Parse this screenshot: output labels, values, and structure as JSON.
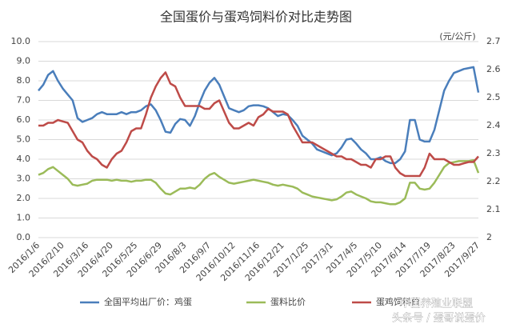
{
  "chart_data": {
    "type": "line",
    "title": "全国蛋价与蛋鸡饲料价对比走势图",
    "y2_unit": "(元/公斤)",
    "watermark": [
      "中国养殖业联盟",
      "头条号 / 蛋哥说蛋价"
    ],
    "categories": [
      "2016/1/6",
      null,
      null,
      null,
      null,
      "2016/2/10",
      null,
      null,
      null,
      null,
      "2016/3/16",
      null,
      null,
      null,
      null,
      "2016/4/20",
      null,
      null,
      null,
      null,
      "2016/5/25",
      null,
      null,
      null,
      null,
      "2016/6/29",
      null,
      null,
      null,
      null,
      "2016/8/3",
      null,
      null,
      null,
      null,
      "2016/9/7",
      null,
      null,
      null,
      null,
      "2016/10/12",
      null,
      null,
      null,
      null,
      "2016/11/16",
      null,
      null,
      null,
      null,
      "2016/12/21",
      null,
      null,
      null,
      null,
      "2017/1/25",
      null,
      null,
      null,
      null,
      "2017/3/1",
      null,
      null,
      null,
      null,
      "2017/4/5",
      null,
      null,
      null,
      null,
      "2017/5/10",
      null,
      null,
      null,
      null,
      "2017/6/14",
      null,
      null,
      null,
      null,
      "2017/7/19",
      null,
      null,
      null,
      null,
      "2017/8/23",
      null,
      null,
      null,
      null,
      "2017/9/27"
    ],
    "series": [
      {
        "name": "全国平均出厂价：鸡蛋",
        "color": "#4a7ebb",
        "values": [
          7.5,
          7.8,
          8.3,
          8.5,
          8.0,
          7.6,
          7.3,
          7.0,
          6.1,
          5.9,
          6.0,
          6.1,
          6.3,
          6.4,
          6.3,
          6.3,
          6.3,
          6.4,
          6.3,
          6.4,
          6.4,
          6.5,
          6.7,
          6.8,
          6.5,
          6.0,
          5.4,
          5.35,
          5.8,
          6.05,
          6.0,
          5.7,
          6.2,
          6.9,
          7.5,
          7.9,
          8.15,
          7.8,
          7.2,
          6.6,
          6.5,
          6.4,
          6.5,
          6.7,
          6.75,
          6.75,
          6.7,
          6.6,
          6.4,
          6.2,
          6.3,
          6.25,
          6.0,
          5.7,
          5.2,
          5.0,
          4.8,
          4.5,
          4.4,
          4.3,
          4.2,
          4.3,
          4.6,
          5.0,
          5.05,
          4.8,
          4.5,
          4.3,
          4.0,
          4.0,
          4.1,
          3.9,
          3.8,
          3.8,
          4.0,
          4.4,
          6.0,
          6.0,
          5.0,
          4.9,
          4.9,
          5.5,
          6.5,
          7.5,
          8.0,
          8.4,
          8.5,
          8.6,
          8.65,
          8.7,
          7.4
        ]
      },
      {
        "name": "蛋料比价",
        "color": "#9bbb59",
        "values": [
          3.2,
          3.3,
          3.5,
          3.6,
          3.4,
          3.2,
          3.0,
          2.7,
          2.65,
          2.7,
          2.75,
          2.9,
          2.95,
          2.95,
          2.95,
          2.9,
          2.95,
          2.9,
          2.9,
          2.85,
          2.9,
          2.9,
          2.95,
          2.95,
          2.8,
          2.5,
          2.25,
          2.2,
          2.35,
          2.5,
          2.5,
          2.55,
          2.5,
          2.7,
          3.0,
          3.2,
          3.3,
          3.1,
          2.95,
          2.8,
          2.75,
          2.8,
          2.85,
          2.9,
          2.95,
          2.9,
          2.85,
          2.8,
          2.7,
          2.65,
          2.7,
          2.65,
          2.6,
          2.5,
          2.3,
          2.2,
          2.1,
          2.05,
          2.0,
          1.95,
          1.9,
          1.95,
          2.1,
          2.3,
          2.35,
          2.2,
          2.1,
          2.0,
          1.85,
          1.8,
          1.8,
          1.75,
          1.7,
          1.7,
          1.8,
          2.0,
          2.8,
          2.8,
          2.5,
          2.45,
          2.5,
          2.8,
          3.2,
          3.6,
          3.8,
          3.85,
          3.9,
          3.9,
          3.9,
          3.95,
          3.3
        ]
      },
      {
        "name": "蛋鸡饲料价",
        "color": "#be4b48",
        "axis": "y2",
        "values": [
          2.4,
          2.4,
          2.41,
          2.41,
          2.42,
          2.415,
          2.41,
          2.38,
          2.35,
          2.34,
          2.31,
          2.29,
          2.28,
          2.26,
          2.25,
          2.28,
          2.3,
          2.31,
          2.34,
          2.38,
          2.39,
          2.39,
          2.44,
          2.5,
          2.54,
          2.57,
          2.59,
          2.55,
          2.54,
          2.5,
          2.47,
          2.47,
          2.47,
          2.47,
          2.46,
          2.46,
          2.48,
          2.49,
          2.45,
          2.41,
          2.39,
          2.39,
          2.4,
          2.41,
          2.4,
          2.43,
          2.44,
          2.46,
          2.45,
          2.45,
          2.45,
          2.44,
          2.4,
          2.37,
          2.34,
          2.34,
          2.34,
          2.33,
          2.32,
          2.31,
          2.3,
          2.29,
          2.29,
          2.28,
          2.28,
          2.27,
          2.26,
          2.26,
          2.25,
          2.28,
          2.28,
          2.29,
          2.29,
          2.25,
          2.23,
          2.22,
          2.22,
          2.22,
          2.22,
          2.25,
          2.3,
          2.28,
          2.28,
          2.28,
          2.27,
          2.26,
          2.26,
          2.265,
          2.27,
          2.27,
          2.29
        ]
      }
    ],
    "ylim": [
      0,
      10
    ],
    "yticks": [
      {
        "value": 0,
        "label": "0.0"
      },
      {
        "value": 1,
        "label": "1.0"
      },
      {
        "value": 2,
        "label": "2.0"
      },
      {
        "value": 3,
        "label": "3.0"
      },
      {
        "value": 4,
        "label": "4.0"
      },
      {
        "value": 5,
        "label": "5.0"
      },
      {
        "value": 6,
        "label": "6.0"
      },
      {
        "value": 7,
        "label": "7.0"
      },
      {
        "value": 8,
        "label": "8.0"
      },
      {
        "value": 9,
        "label": "9.0"
      },
      {
        "value": 10,
        "label": "10.0"
      }
    ],
    "y2lim": [
      2,
      2.7
    ],
    "y2ticks": [
      2,
      2.1,
      2.2,
      2.3,
      2.4,
      2.5,
      2.6,
      2.7
    ],
    "grid": true
  }
}
